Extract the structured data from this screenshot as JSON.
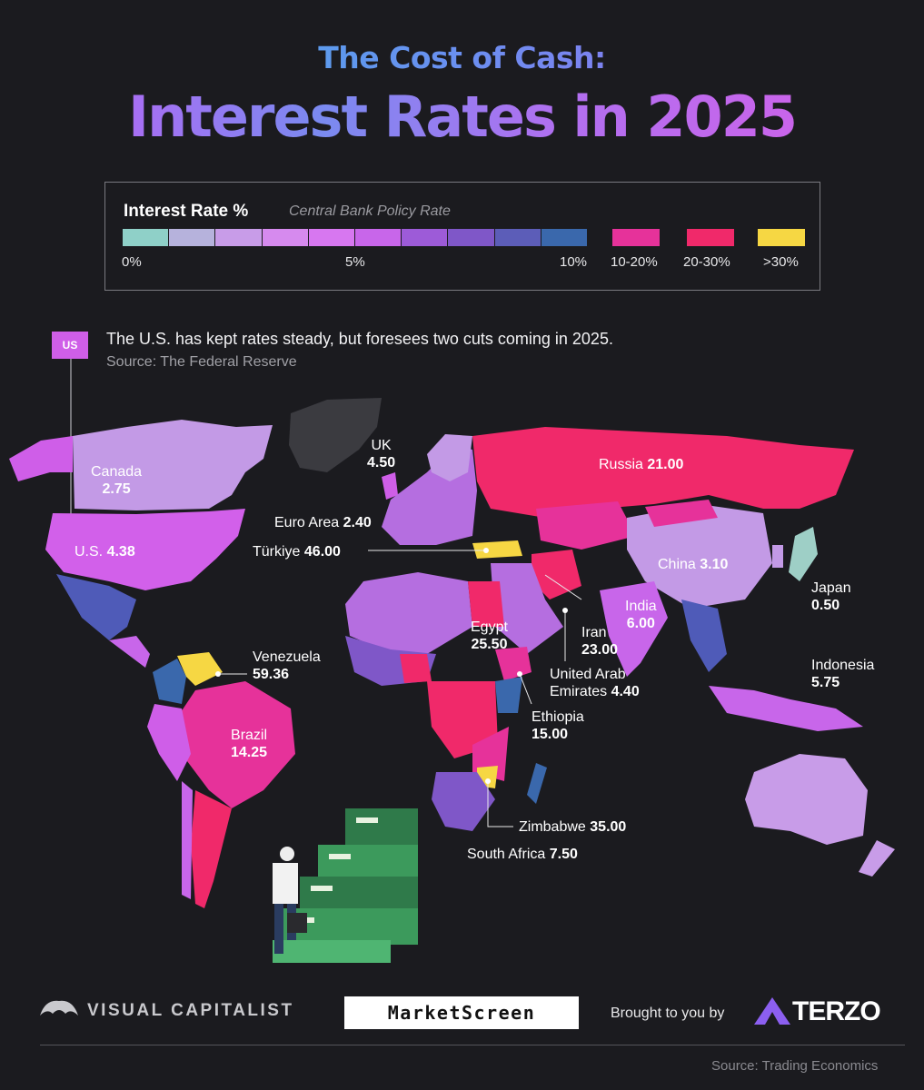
{
  "title": {
    "subtitle": "The Cost of Cash:",
    "main": "Interest Rates in 2025"
  },
  "legend": {
    "title": "Interest Rate %",
    "subtitle": "Central Bank Policy Rate",
    "gradient_colors": [
      "#8fd0c8",
      "#b6b2dc",
      "#c89ce8",
      "#d68aee",
      "#d777f0",
      "#c866ea",
      "#9d5bd8",
      "#7f57c8",
      "#5c5db8",
      "#3a68ac"
    ],
    "labels_scale": [
      "0%",
      "5%",
      "10%"
    ],
    "buckets": [
      {
        "label": "10-20%",
        "color": "#e6329a"
      },
      {
        "label": "20-30%",
        "color": "#f0296a"
      },
      {
        "label": ">30%",
        "color": "#f6d743"
      }
    ]
  },
  "callout": {
    "tag": "US",
    "text": "The U.S. has kept rates steady, but foresees two cuts coming in 2025.",
    "source": "Source: The Federal Reserve"
  },
  "map_labels": [
    {
      "name": "Canada",
      "value": "2.75"
    },
    {
      "name": "U.S.",
      "value": "4.38"
    },
    {
      "name": "UK",
      "value": "4.50"
    },
    {
      "name": "Euro Area",
      "value": "2.40"
    },
    {
      "name": "Türkiye",
      "value": "46.00"
    },
    {
      "name": "Russia",
      "value": "21.00"
    },
    {
      "name": "China",
      "value": "3.10"
    },
    {
      "name": "Japan",
      "value": "0.50"
    },
    {
      "name": "India",
      "value": "6.00"
    },
    {
      "name": "Iran",
      "value": "23.00"
    },
    {
      "name": "Egypt",
      "value": "25.50"
    },
    {
      "name": "United Arab",
      "name2": "Emirates",
      "value": "4.40"
    },
    {
      "name": "Indonesia",
      "value": "5.75"
    },
    {
      "name": "Venezuela",
      "value": "59.36"
    },
    {
      "name": "Brazil",
      "value": "14.25"
    },
    {
      "name": "Ethiopia",
      "value": "15.00"
    },
    {
      "name": "Zimbabwe",
      "value": "35.00"
    },
    {
      "name": "South Africa",
      "value": "7.50"
    }
  ],
  "footer": {
    "visual_capitalist": "VISUAL CAPITALIST",
    "marketscreen": "MarketScreen",
    "brought_by": "Brought to you by",
    "terzo": "TERZO",
    "source": "Source: Trading Economics"
  }
}
